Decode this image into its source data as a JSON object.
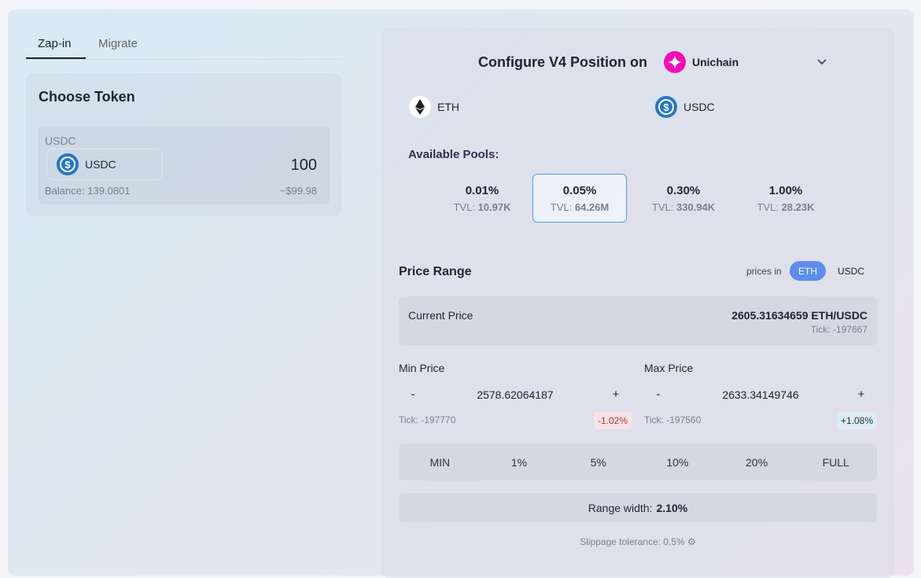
{
  "tabs": [
    "Zap-in",
    "Migrate"
  ],
  "left": {
    "title": "Choose Token",
    "token_label": "USDC",
    "token": "USDC",
    "amount": "100",
    "balance": "Balance: 139.0801",
    "usd_value": "~$99.98"
  },
  "right": {
    "title": "Configure V4 Position on",
    "network": "Unichain",
    "token0": "ETH",
    "token1": "USDC",
    "pools_label": "Available Pools:",
    "pools": [
      {
        "fee": "0.01%",
        "tvl_label": "TVL:",
        "tvl": "10.97K"
      },
      {
        "fee": "0.05%",
        "tvl_label": "TVL:",
        "tvl": "64.26M"
      },
      {
        "fee": "0.30%",
        "tvl_label": "TVL:",
        "tvl": "330.94K"
      },
      {
        "fee": "1.00%",
        "tvl_label": "TVL:",
        "tvl": "28.23K"
      }
    ],
    "price_range": {
      "title": "Price Range",
      "prices_in": "prices in",
      "units": [
        "ETH",
        "USDC"
      ],
      "current_label": "Current Price",
      "current_value": "2605.31634659 ETH/USDC",
      "current_tick": "Tick: -197667",
      "min": {
        "label": "Min Price",
        "minus": "-",
        "value": "2578.62064187",
        "plus": "+",
        "tick": "Tick: -197770",
        "change": "-1.02%"
      },
      "max": {
        "label": "Max Price",
        "minus": "-",
        "value": "2633.34149746",
        "plus": "+",
        "tick": "Tick: -197560",
        "change": "+1.08%"
      },
      "presets": [
        "MIN",
        "1%",
        "5%",
        "10%",
        "20%",
        "FULL"
      ],
      "range_width_label": "Range width:",
      "range_width": "2.10%",
      "slippage": "Slippage tolerance: 0.5%"
    }
  }
}
